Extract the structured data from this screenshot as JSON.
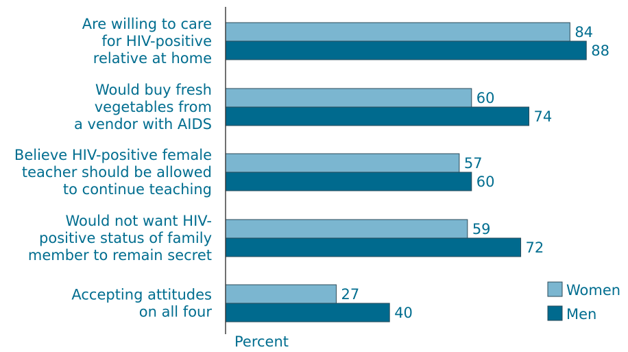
{
  "colors": {
    "women": "#7bb6d0",
    "men": "#006a8e",
    "text": "#006d8f",
    "axis": "#333333",
    "bar_stroke": "#2a4a58"
  },
  "chart_data": {
    "type": "bar",
    "orientation": "horizontal",
    "categories": [
      [
        "Are willing to care",
        "for HIV-positive",
        "relative at home"
      ],
      [
        "Would buy fresh",
        "vegetables from",
        "a vendor with AIDS"
      ],
      [
        "Believe HIV-positive female",
        "teacher should be allowed",
        "to continue teaching"
      ],
      [
        "Would not want HIV-",
        "positive status of family",
        "member to remain secret"
      ],
      [
        "Accepting attitudes",
        "on all four"
      ]
    ],
    "series": [
      {
        "name": "Women",
        "values": [
          84,
          60,
          57,
          59,
          27
        ]
      },
      {
        "name": "Men",
        "values": [
          88,
          74,
          60,
          72,
          40
        ]
      }
    ],
    "xlabel": "Percent",
    "xlim": [
      0,
      100
    ],
    "grid": false,
    "legend": "bottom-right",
    "data_labels": true
  }
}
